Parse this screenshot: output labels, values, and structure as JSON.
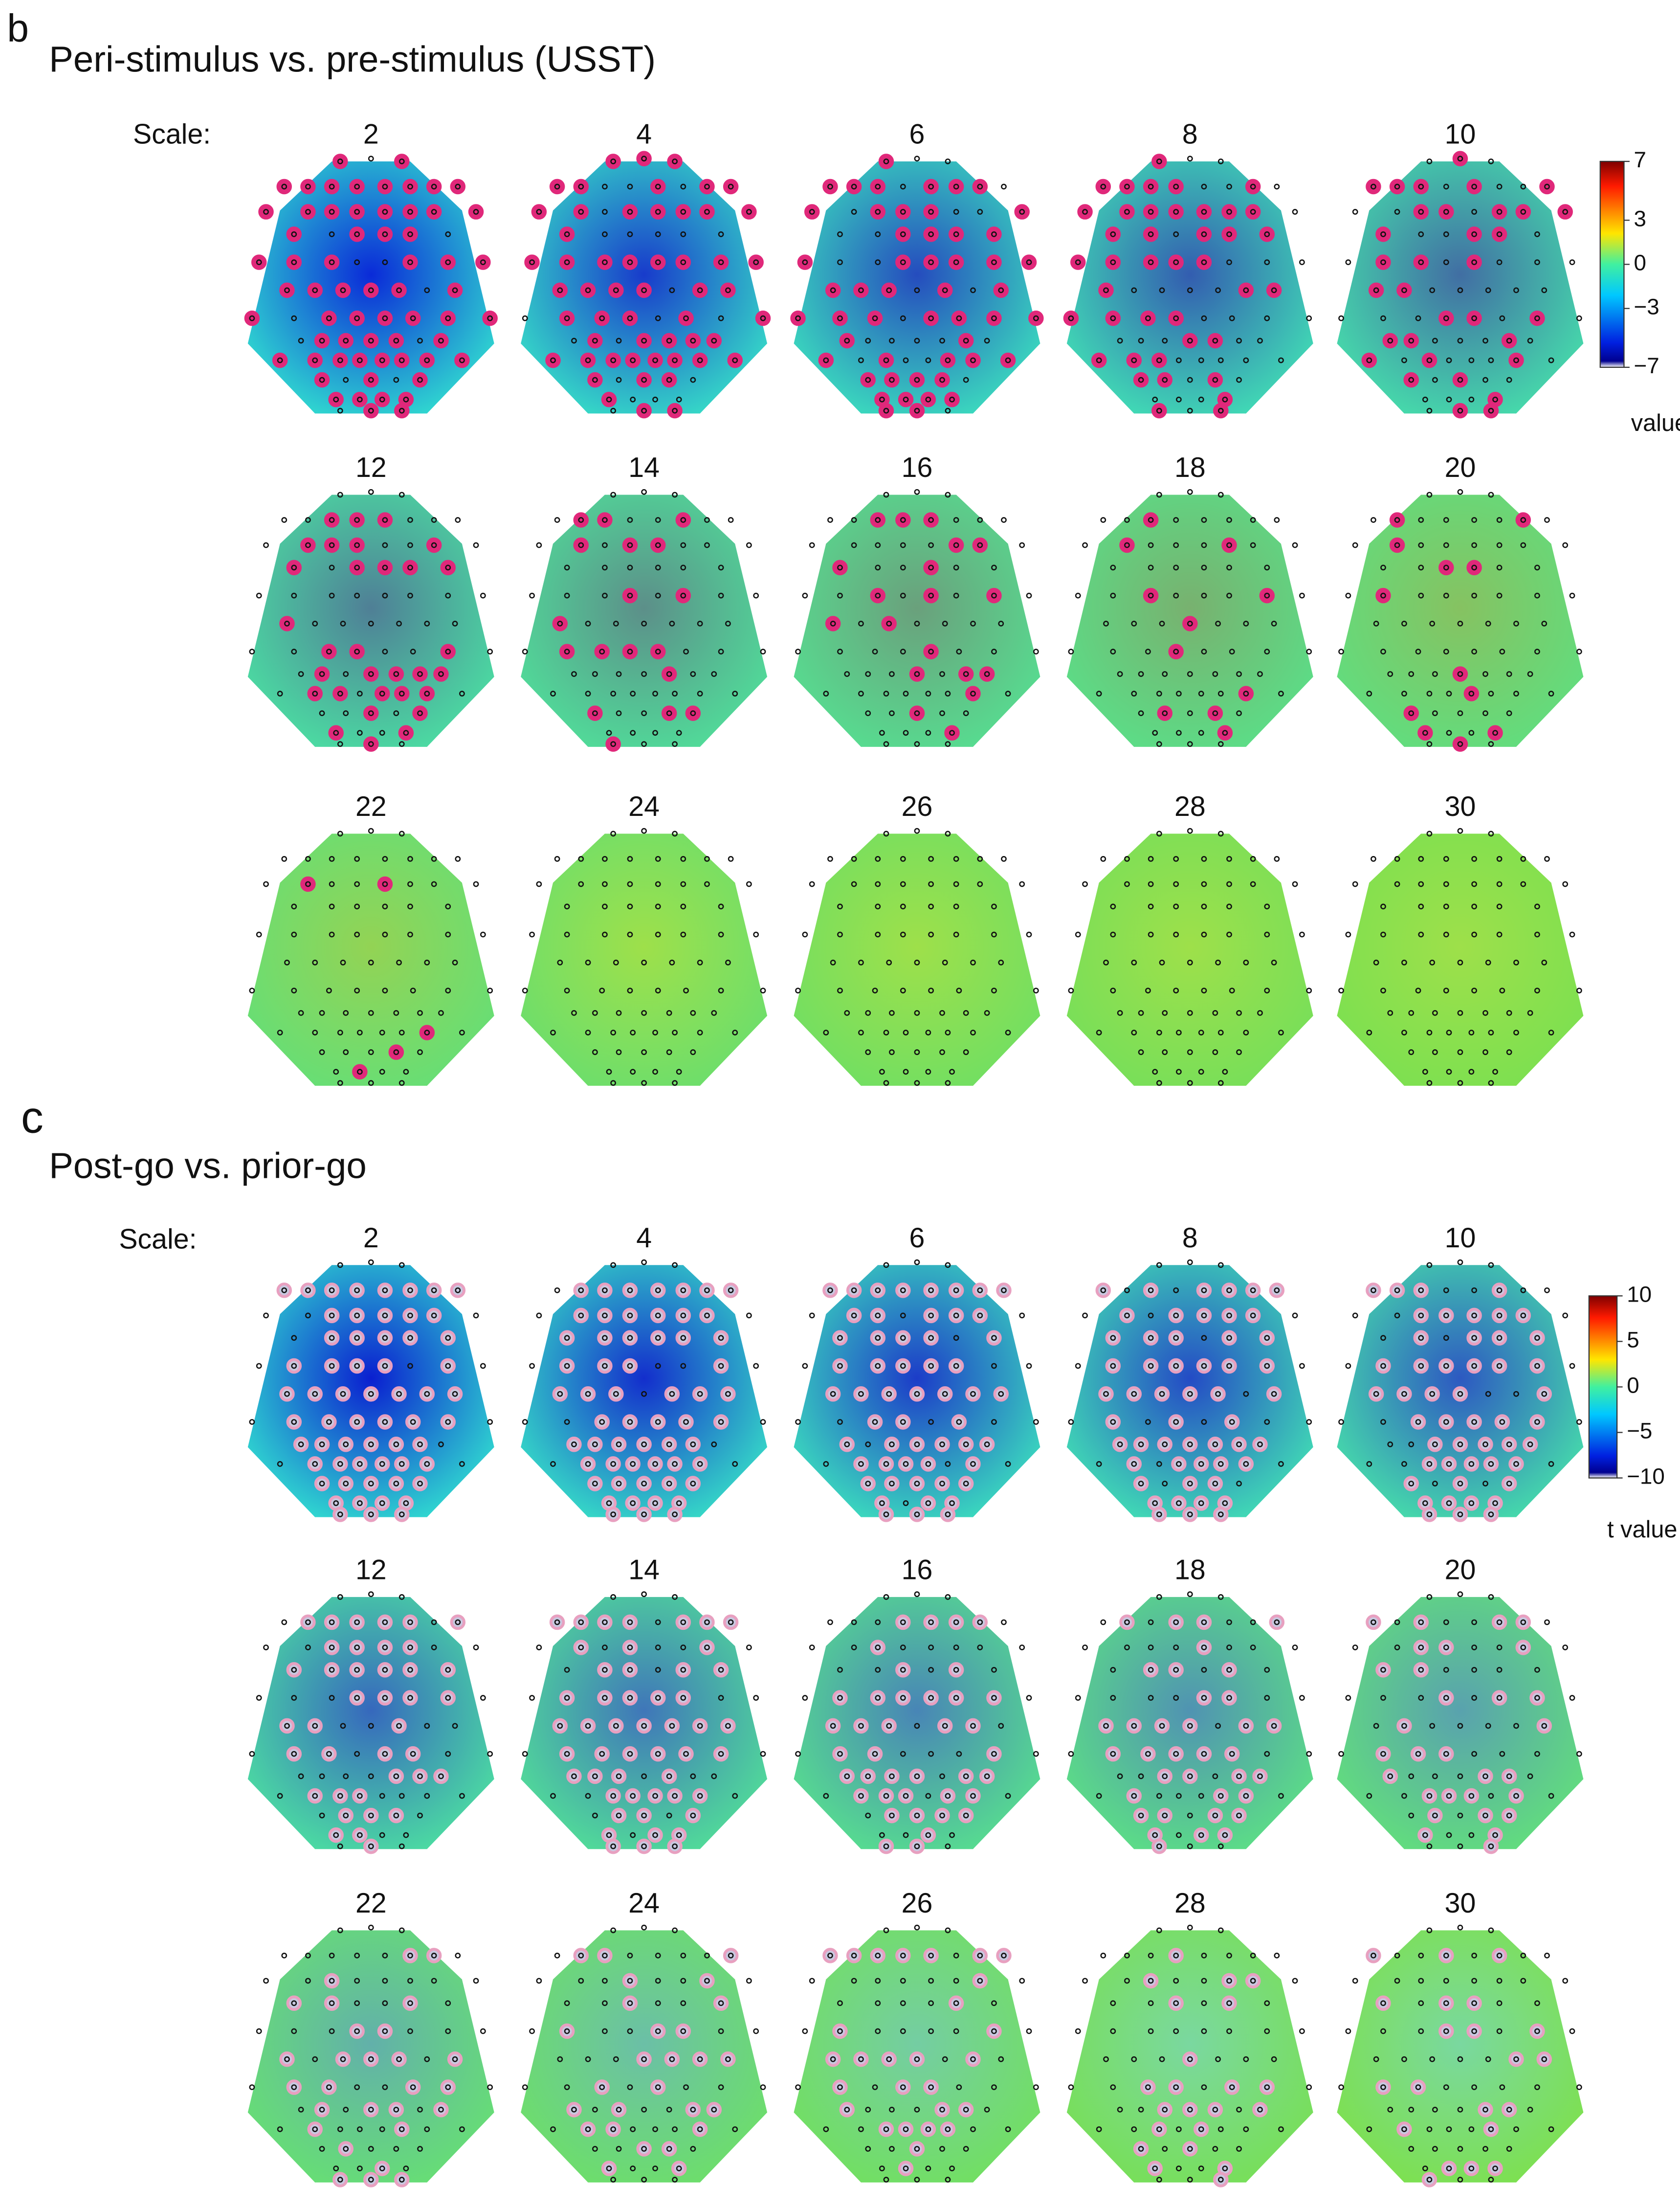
{
  "panels": [
    {
      "label": "b",
      "title": "Peri-stimulus vs. pre-stimulus (USST)",
      "scale_label": "Scale:",
      "scales": [
        2,
        4,
        6,
        8,
        10,
        12,
        14,
        16,
        18,
        20,
        22,
        24,
        26,
        28,
        30
      ],
      "colorbar": {
        "ticks": [
          7,
          3,
          0,
          {
            "value": -3,
            "label": "−3"
          },
          {
            "value": -7,
            "label": "−7"
          }
        ],
        "label": "value"
      }
    },
    {
      "label": "c",
      "title": "Post-go vs. prior-go",
      "scale_label": "Scale:",
      "scales": [
        2,
        4,
        6,
        8,
        10,
        12,
        14,
        16,
        18,
        20,
        22,
        24,
        26,
        28,
        30
      ],
      "colorbar": {
        "ticks": [
          10,
          5,
          0,
          {
            "value": -5,
            "label": "−5"
          },
          {
            "value": -10,
            "label": "−10"
          }
        ],
        "label": "t value"
      }
    }
  ]
}
